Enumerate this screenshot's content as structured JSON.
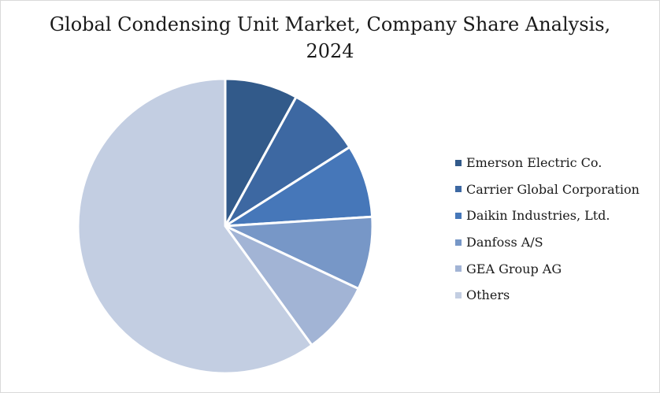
{
  "chart_data": {
    "type": "pie",
    "title_line1": "Global Condensing Unit Market, Company Share Analysis,",
    "title_line2": "2024",
    "slices": [
      {
        "name": "Emerson Electric Co.",
        "value": 8,
        "color": "#325a8a"
      },
      {
        "name": "Carrier Global Corporation",
        "value": 8,
        "color": "#3d68a2"
      },
      {
        "name": "Daikin Industries, Ltd.",
        "value": 8,
        "color": "#4677b9"
      },
      {
        "name": "Danfoss A/S",
        "value": 8,
        "color": "#7797c7"
      },
      {
        "name": "GEA Group AG",
        "value": 8,
        "color": "#a2b4d5"
      },
      {
        "name": "Others",
        "value": 60,
        "color": "#c3cee2"
      }
    ],
    "legend_position": "right"
  }
}
